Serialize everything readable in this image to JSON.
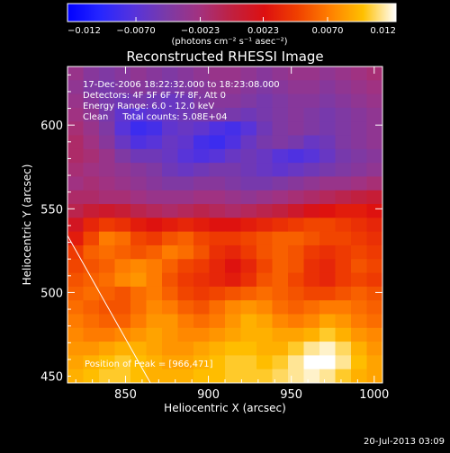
{
  "chart_data": {
    "type": "heatmap",
    "title": "Reconstructed RHESSI Image",
    "xlabel": "Heliocentric X (arcsec)",
    "ylabel": "Heliocentric Y (arcsec)",
    "xlim": [
      815,
      1005
    ],
    "ylim": [
      446,
      635
    ],
    "xticks": [
      850,
      900,
      950,
      1000
    ],
    "yticks": [
      500,
      550,
      600
    ],
    "colorbar": {
      "range": [
        -0.012,
        0.012
      ],
      "ticks": [
        -0.012,
        -0.007,
        -0.0023,
        0.0023,
        0.007,
        0.012
      ],
      "tick_labels": [
        "−0.012",
        "−0.0070",
        "−0.0023",
        "0.0023",
        "0.0070",
        "0.012"
      ],
      "unit_label": "(photons cm⁻² s⁻¹ asec⁻²)",
      "stops": [
        "#0000ff",
        "#2626ff",
        "#5533dd",
        "#7a3aa8",
        "#a23280",
        "#c02040",
        "#dd1010",
        "#f04000",
        "#ff8000",
        "#ffc000",
        "#ffffff"
      ]
    },
    "annotations": [
      "17-Dec-2006 18:22:32.000 to 18:23:08.000",
      "Detectors: 4F 5F 6F 7F 8F, Att 0",
      "Energy Range: 6.0 - 12.0 keV",
      "Clean     Total counts: 5.08E+04"
    ],
    "peak_label": "Position of Peak = [966,471]",
    "peak": [
      966,
      471
    ],
    "limb_line": [
      [
        815,
        534
      ],
      [
        865,
        446
      ]
    ],
    "grid": false,
    "footer": "20-Jul-2013 03:09",
    "intensity_rows_description": "value per row from top (y=635) to bottom (y=446), sampled every ~9.5 arcsec",
    "intensity_rows": [
      [
        -0.003,
        -0.004,
        -0.0045,
        -0.004,
        -0.0035,
        -0.004,
        -0.0045,
        -0.004,
        -0.0035,
        -0.003,
        -0.003,
        -0.0035,
        -0.004,
        -0.0035,
        -0.003,
        -0.003,
        -0.0035,
        -0.003,
        -0.0025,
        -0.002
      ],
      [
        -0.0035,
        -0.0045,
        -0.005,
        -0.0045,
        -0.004,
        -0.0045,
        -0.005,
        -0.0045,
        -0.004,
        -0.0035,
        -0.0035,
        -0.004,
        -0.0045,
        -0.004,
        -0.0035,
        -0.0035,
        -0.004,
        -0.0035,
        -0.003,
        -0.0025
      ],
      [
        -0.003,
        -0.004,
        -0.005,
        -0.0055,
        -0.005,
        -0.0055,
        -0.006,
        -0.0055,
        -0.0045,
        -0.004,
        -0.004,
        -0.0045,
        -0.005,
        -0.0045,
        -0.004,
        -0.004,
        -0.0045,
        -0.004,
        -0.0035,
        -0.003
      ],
      [
        -0.0025,
        -0.0035,
        -0.005,
        -0.0065,
        -0.007,
        -0.0065,
        -0.006,
        -0.0055,
        -0.005,
        -0.0045,
        -0.005,
        -0.0055,
        -0.005,
        -0.0045,
        -0.004,
        -0.0045,
        -0.005,
        -0.0045,
        -0.004,
        -0.0035
      ],
      [
        -0.002,
        -0.003,
        -0.0045,
        -0.007,
        -0.0085,
        -0.008,
        -0.0065,
        -0.006,
        -0.0065,
        -0.0075,
        -0.008,
        -0.007,
        -0.0055,
        -0.0045,
        -0.004,
        -0.0045,
        -0.005,
        -0.0045,
        -0.004,
        -0.0035
      ],
      [
        -0.0015,
        -0.0025,
        -0.004,
        -0.006,
        -0.0075,
        -0.007,
        -0.006,
        -0.0065,
        -0.008,
        -0.0085,
        -0.0075,
        -0.006,
        -0.005,
        -0.0045,
        -0.005,
        -0.006,
        -0.0055,
        -0.0045,
        -0.004,
        -0.0035
      ],
      [
        -0.0015,
        -0.002,
        -0.003,
        -0.0045,
        -0.0055,
        -0.0055,
        -0.006,
        -0.007,
        -0.0075,
        -0.007,
        -0.006,
        -0.0055,
        -0.006,
        -0.007,
        -0.0075,
        -0.007,
        -0.006,
        -0.005,
        -0.0045,
        -0.004
      ],
      [
        -0.002,
        -0.0025,
        -0.003,
        -0.0035,
        -0.004,
        -0.0045,
        -0.0055,
        -0.006,
        -0.0055,
        -0.005,
        -0.005,
        -0.0055,
        -0.006,
        -0.0065,
        -0.006,
        -0.0055,
        -0.005,
        -0.0045,
        -0.004,
        -0.0035
      ],
      [
        -0.0025,
        -0.002,
        -0.0025,
        -0.003,
        -0.0035,
        -0.004,
        -0.0045,
        -0.0045,
        -0.004,
        -0.004,
        -0.0045,
        -0.005,
        -0.005,
        -0.0045,
        -0.004,
        -0.0035,
        -0.003,
        -0.003,
        -0.0025,
        -0.002
      ],
      [
        -0.0015,
        -0.0015,
        -0.002,
        -0.002,
        -0.0025,
        -0.003,
        -0.003,
        -0.003,
        -0.0025,
        -0.0025,
        -0.003,
        -0.0035,
        -0.003,
        -0.0025,
        -0.002,
        -0.0015,
        -0.001,
        -0.0005,
        0.0,
        0.0005
      ],
      [
        -0.0005,
        0.0005,
        0.001,
        0.0005,
        -0.0005,
        -0.001,
        -0.0015,
        -0.001,
        -0.0005,
        -0.001,
        -0.0015,
        -0.001,
        -0.0005,
        0.0,
        0.001,
        0.002,
        0.0025,
        0.003,
        0.003,
        0.0025
      ],
      [
        0.0015,
        0.0035,
        0.0045,
        0.004,
        0.003,
        0.0025,
        0.003,
        0.0035,
        0.003,
        0.0025,
        0.0025,
        0.003,
        0.0035,
        0.004,
        0.0045,
        0.005,
        0.005,
        0.0045,
        0.004,
        0.0035
      ],
      [
        0.003,
        0.005,
        0.007,
        0.0065,
        0.005,
        0.0045,
        0.0055,
        0.006,
        0.005,
        0.0045,
        0.0045,
        0.005,
        0.0055,
        0.006,
        0.006,
        0.0055,
        0.005,
        0.005,
        0.0045,
        0.004
      ],
      [
        0.0045,
        0.006,
        0.0065,
        0.006,
        0.0055,
        0.006,
        0.007,
        0.0065,
        0.0055,
        0.004,
        0.0035,
        0.0045,
        0.0055,
        0.006,
        0.0055,
        0.0045,
        0.004,
        0.0045,
        0.005,
        0.0045
      ],
      [
        0.005,
        0.0055,
        0.006,
        0.007,
        0.0075,
        0.007,
        0.006,
        0.005,
        0.0045,
        0.0035,
        0.0025,
        0.0035,
        0.005,
        0.006,
        0.0055,
        0.004,
        0.0035,
        0.0045,
        0.0055,
        0.005
      ],
      [
        0.0055,
        0.006,
        0.0065,
        0.0075,
        0.008,
        0.007,
        0.0055,
        0.0045,
        0.004,
        0.0035,
        0.003,
        0.004,
        0.0055,
        0.006,
        0.005,
        0.004,
        0.0035,
        0.0045,
        0.005,
        0.0045
      ],
      [
        0.006,
        0.0065,
        0.006,
        0.0055,
        0.0065,
        0.007,
        0.006,
        0.005,
        0.0045,
        0.005,
        0.0055,
        0.006,
        0.0065,
        0.006,
        0.0055,
        0.005,
        0.005,
        0.0055,
        0.006,
        0.0055
      ],
      [
        0.0065,
        0.006,
        0.0055,
        0.0055,
        0.0065,
        0.0075,
        0.007,
        0.006,
        0.0055,
        0.0065,
        0.0075,
        0.008,
        0.0075,
        0.0065,
        0.006,
        0.0065,
        0.007,
        0.007,
        0.0065,
        0.006
      ],
      [
        0.007,
        0.0065,
        0.006,
        0.006,
        0.007,
        0.008,
        0.008,
        0.007,
        0.0065,
        0.007,
        0.008,
        0.009,
        0.0085,
        0.0075,
        0.007,
        0.0075,
        0.0085,
        0.008,
        0.007,
        0.0065
      ],
      [
        0.0075,
        0.007,
        0.007,
        0.0075,
        0.008,
        0.0085,
        0.008,
        0.0075,
        0.0075,
        0.008,
        0.0085,
        0.009,
        0.009,
        0.0085,
        0.0085,
        0.009,
        0.01,
        0.009,
        0.008,
        0.0075
      ],
      [
        0.008,
        0.008,
        0.0085,
        0.009,
        0.009,
        0.0085,
        0.008,
        0.008,
        0.0085,
        0.009,
        0.0095,
        0.0095,
        0.009,
        0.009,
        0.01,
        0.011,
        0.0115,
        0.0105,
        0.009,
        0.008
      ],
      [
        0.0085,
        0.009,
        0.0095,
        0.01,
        0.0095,
        0.009,
        0.0085,
        0.0085,
        0.009,
        0.0095,
        0.01,
        0.01,
        0.0095,
        0.01,
        0.011,
        0.012,
        0.012,
        0.011,
        0.0095,
        0.0085
      ],
      [
        0.009,
        0.0095,
        0.01,
        0.01,
        0.0095,
        0.009,
        0.009,
        0.009,
        0.0095,
        0.0095,
        0.01,
        0.01,
        0.01,
        0.0105,
        0.011,
        0.0115,
        0.011,
        0.01,
        0.009,
        0.0085
      ]
    ]
  }
}
